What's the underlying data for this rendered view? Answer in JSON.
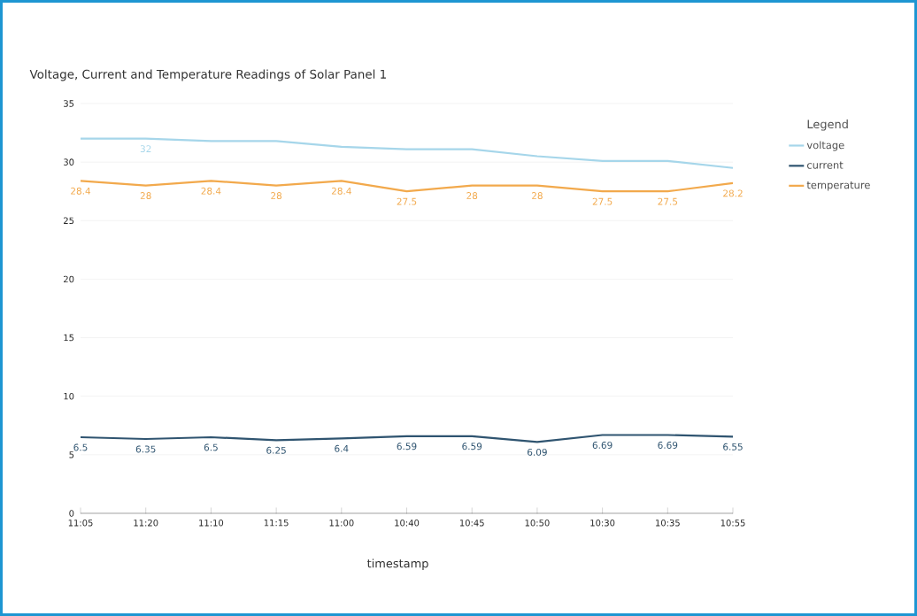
{
  "chart_data": {
    "type": "line",
    "title": "Voltage, Current and Temperature Readings of Solar Panel 1",
    "xlabel": "timestamp",
    "legend_title": "Legend",
    "categories": [
      "11:05",
      "11:20",
      "11:10",
      "11:15",
      "11:00",
      "10:40",
      "10:45",
      "10:50",
      "10:30",
      "10:35",
      "10:55"
    ],
    "series": [
      {
        "name": "voltage",
        "color": "#a6d6ea",
        "values": [
          32,
          32,
          31.8,
          31.8,
          31.3,
          31.1,
          31.1,
          30.5,
          30.1,
          30.1,
          29.5
        ],
        "value_labels": [
          null,
          "32",
          null,
          null,
          null,
          null,
          null,
          null,
          null,
          null,
          null
        ]
      },
      {
        "name": "current",
        "color": "#2f5470",
        "values": [
          6.5,
          6.35,
          6.5,
          6.25,
          6.4,
          6.59,
          6.59,
          6.09,
          6.69,
          6.69,
          6.55
        ],
        "value_labels": [
          "6.5",
          "6.35",
          "6.5",
          "6.25",
          "6.4",
          "6.59",
          "6.59",
          "6.09",
          "6.69",
          "6.69",
          "6.55"
        ]
      },
      {
        "name": "temperature",
        "color": "#f2a94c",
        "values": [
          28.4,
          28,
          28.4,
          28,
          28.4,
          27.5,
          28,
          28,
          27.5,
          27.5,
          28.2
        ],
        "value_labels": [
          "28.4",
          "28",
          "28.4",
          "28",
          "28.4",
          "27.5",
          "28",
          "28",
          "27.5",
          "27.5",
          "28.2"
        ]
      }
    ],
    "ylim": [
      0,
      35
    ],
    "yticks": [
      0,
      5,
      10,
      15,
      20,
      25,
      30,
      35
    ],
    "grid": "y",
    "legend": "right",
    "marker": "none",
    "line_style": "solid"
  }
}
